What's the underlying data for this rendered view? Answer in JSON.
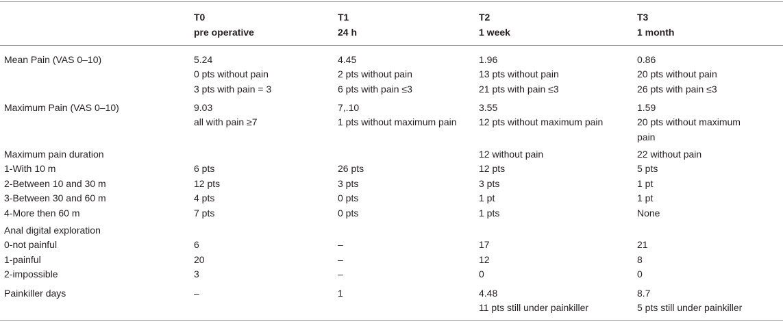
{
  "headers": [
    {
      "l1": "T0",
      "l2": "pre operative"
    },
    {
      "l1": "T1",
      "l2": "24 h"
    },
    {
      "l1": "T2",
      "l2": "1 week"
    },
    {
      "l1": "T3",
      "l2": "1 month"
    }
  ],
  "rows": {
    "mean_pain": {
      "label": "Mean Pain (VAS 0–10)",
      "c0": [
        "5.24",
        "0 pts without pain",
        "3 pts with pain = 3"
      ],
      "c1": [
        "4.45",
        "2 pts without pain",
        "6 pts with pain ≤3"
      ],
      "c2": [
        "1.96",
        "13 pts without pain",
        "21 pts with pain ≤3"
      ],
      "c3": [
        "0.86",
        "20 pts without pain",
        "26 pts with pain ≤3"
      ]
    },
    "max_pain": {
      "label": "Maximum Pain (VAS 0–10)",
      "c0": [
        "9.03",
        "all with pain ≥7"
      ],
      "c1": [
        "7,.10",
        "1 pts without maximum pain"
      ],
      "c2": [
        "3.55",
        "12 pts without maximum pain"
      ],
      "c3": [
        "1.59",
        "20 pts without maximum",
        "pain"
      ]
    },
    "duration": {
      "labels": [
        "Maximum pain duration",
        "1-With 10 m",
        "2-Between 10 and 30 m",
        "3-Between 30 and 60 m",
        "4-More then 60 m"
      ],
      "c0": [
        "",
        "6 pts",
        "12 pts",
        "4 pts",
        "7 pts"
      ],
      "c1": [
        "",
        "26 pts",
        "3 pts",
        "0 pts",
        "0 pts"
      ],
      "c2": [
        "12 without pain",
        "12 pts",
        "3 pts",
        "1 pt",
        "1 pts"
      ],
      "c3": [
        "22 without pain",
        "5 pts",
        "1 pt",
        "1 pt",
        "None"
      ]
    },
    "anal": {
      "labels": [
        "Anal digital exploration",
        "0-not painful",
        "1-painful",
        "2-impossible"
      ],
      "c0": [
        "",
        "6",
        "20",
        "3"
      ],
      "c1": [
        "",
        "–",
        "–",
        "–"
      ],
      "c2": [
        "",
        "17",
        "12",
        "0"
      ],
      "c3": [
        "",
        "21",
        "8",
        "0"
      ]
    },
    "painkiller": {
      "label": "Painkiller days",
      "c0": [
        "–"
      ],
      "c1": [
        "1"
      ],
      "c2": [
        "4.48",
        "11 pts still under painkiller"
      ],
      "c3": [
        "8.7",
        "5 pts still under painkiller"
      ]
    }
  }
}
